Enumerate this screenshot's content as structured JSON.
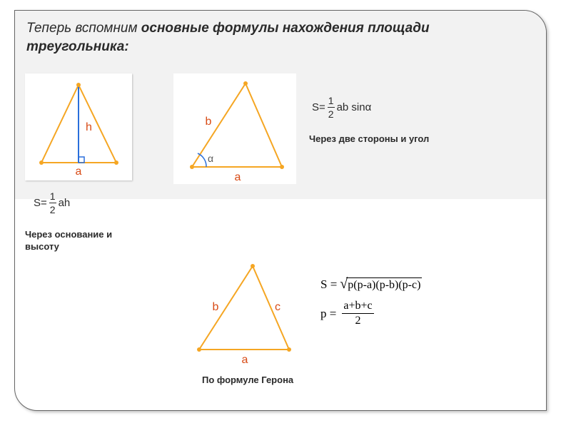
{
  "heading": {
    "regular": "Теперь вспомним ",
    "bold": "основные формулы нахождения площади треугольника:"
  },
  "colors": {
    "triangle_stroke": "#f5a623",
    "triangle_fill": "#ffffff",
    "vertex_fill": "#f5a623",
    "height_stroke": "#2a6fdb",
    "label_a": "#d84b16",
    "label_b": "#d84b16",
    "label_c": "#d84b16",
    "label_h": "#d84b16",
    "angle_arc": "#2a6fdb",
    "angle_label": "#5a5a5a",
    "frame_bg": "#ffffff",
    "band_bg": "#f2f2f2",
    "text": "#2a2a2a"
  },
  "sizes": {
    "triangle_stroke_width": 2,
    "vertex_radius": 3
  },
  "figure1": {
    "labels": {
      "base": "a",
      "height": "h"
    },
    "formula": {
      "lhs": "S=",
      "num": "1",
      "den": "2",
      "rhs": "ah"
    },
    "caption": "Через основание и высоту"
  },
  "figure2": {
    "labels": {
      "base": "a",
      "side": "b",
      "angle": "α"
    },
    "formula": {
      "lhs": "S=",
      "num": "1",
      "den": "2",
      "rhs": "ab sinα"
    },
    "caption": "Через две стороны и угол"
  },
  "figure3": {
    "labels": {
      "base": "a",
      "left": "b",
      "right": "c"
    },
    "formula_s": {
      "lhs": "S =",
      "under_sqrt": "p(p-a)(p-b)(p-c)"
    },
    "formula_p": {
      "lhs": "p =",
      "num": "a+b+c",
      "den": "2"
    },
    "caption": "По формуле Герона"
  }
}
